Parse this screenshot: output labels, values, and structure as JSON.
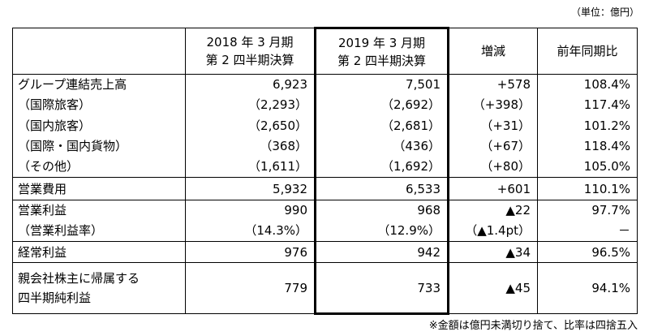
{
  "unit_note": "（単位：億円）",
  "table": {
    "header": [
      [
        "2018 年 3 月期",
        "第 2 四半期決算"
      ],
      [
        "2019 年 3 月期",
        "第 2 四半期決算"
      ],
      [
        "増減"
      ],
      [
        "前年同期比"
      ]
    ],
    "rows": [
      [
        [
          "グループ連結売上高"
        ],
        "6,923",
        "7,501",
        "+578",
        "108.4%"
      ],
      [
        [
          "（国際旅客）"
        ],
        "（2,293）",
        "（2,692）",
        "（+398）",
        "117.4%"
      ],
      [
        [
          "（国内旅客）"
        ],
        "（2,650）",
        "（2,681）",
        "（+31）",
        "101.2%"
      ],
      [
        [
          "（国際・国内貨物）"
        ],
        "（368）",
        "（436）",
        "（+67）",
        "118.4%"
      ],
      [
        [
          "（その他）"
        ],
        "（1,611）",
        "（1,692）",
        "（+80）",
        "105.0%"
      ],
      [
        [
          "営業費用"
        ],
        "5,932",
        "6,533",
        "+601",
        "110.1%"
      ],
      [
        [
          "営業利益"
        ],
        "990",
        "968",
        "▲22",
        "97.7%"
      ],
      [
        [
          "（営業利益率）"
        ],
        "（14.3%）",
        "（12.9%）",
        "（▲1.4pt）",
        "－"
      ],
      [
        [
          "経常利益"
        ],
        "976",
        "942",
        "▲34",
        "96.5%"
      ],
      [
        [
          "親会社株主に帰属する",
          "四半期純利益"
        ],
        "779",
        "733",
        "▲45",
        "94.1%"
      ]
    ]
  },
  "footnote": "※金額は億円未満切り捨て、比率は四捨五入"
}
